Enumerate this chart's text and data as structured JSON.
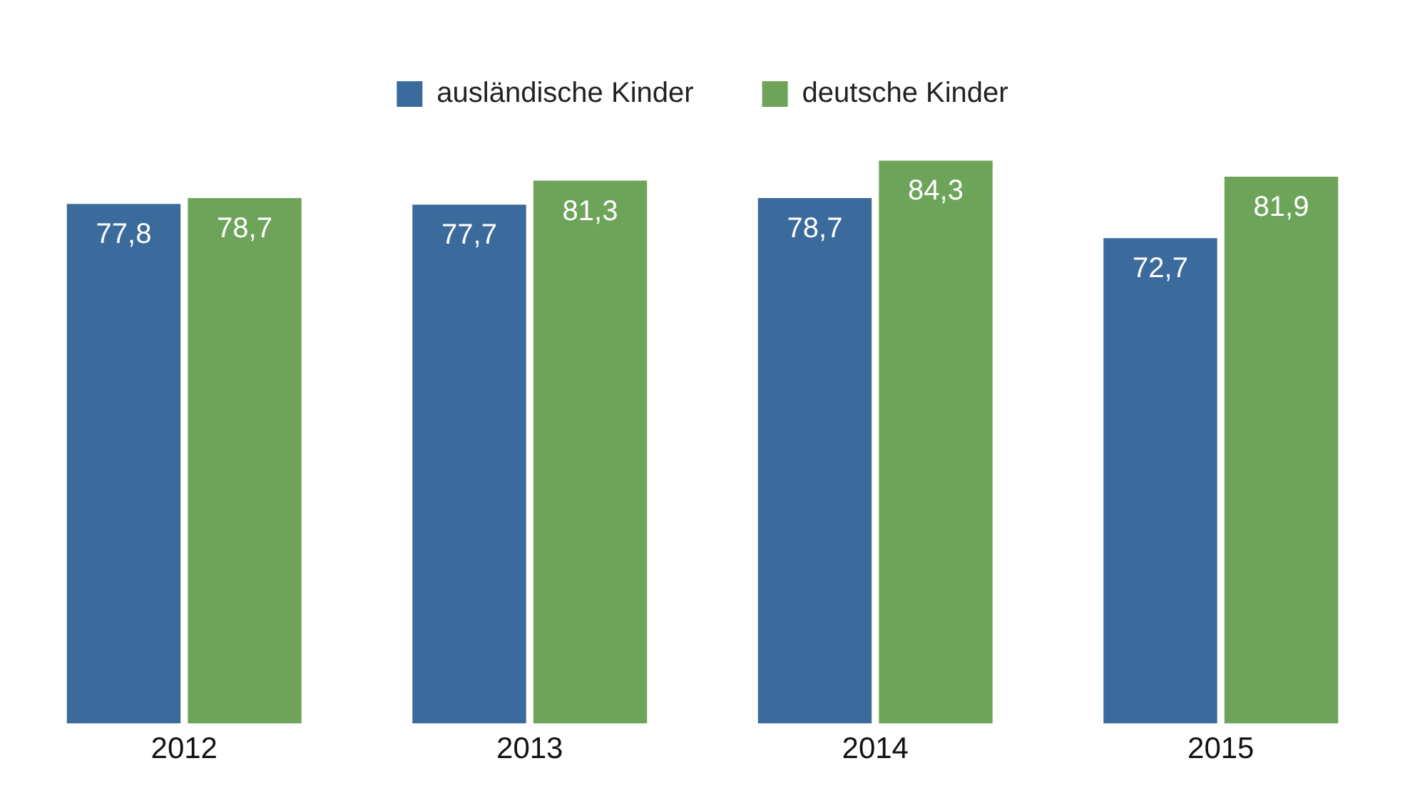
{
  "chart_data": {
    "type": "bar",
    "categories": [
      "2012",
      "2013",
      "2014",
      "2015"
    ],
    "series": [
      {
        "name": "ausländische Kinder",
        "color": "#3b6a9c",
        "values": [
          77.8,
          77.7,
          78.7,
          72.7
        ],
        "value_labels": [
          "77,8",
          "77,7",
          "78,7",
          "72,7"
        ]
      },
      {
        "name": "deutsche Kinder",
        "color": "#6ea45a",
        "values": [
          78.7,
          81.3,
          84.3,
          81.9
        ],
        "value_labels": [
          "78,7",
          "81,3",
          "84,3",
          "81,9"
        ]
      }
    ],
    "legend": "top",
    "grid": false
  }
}
